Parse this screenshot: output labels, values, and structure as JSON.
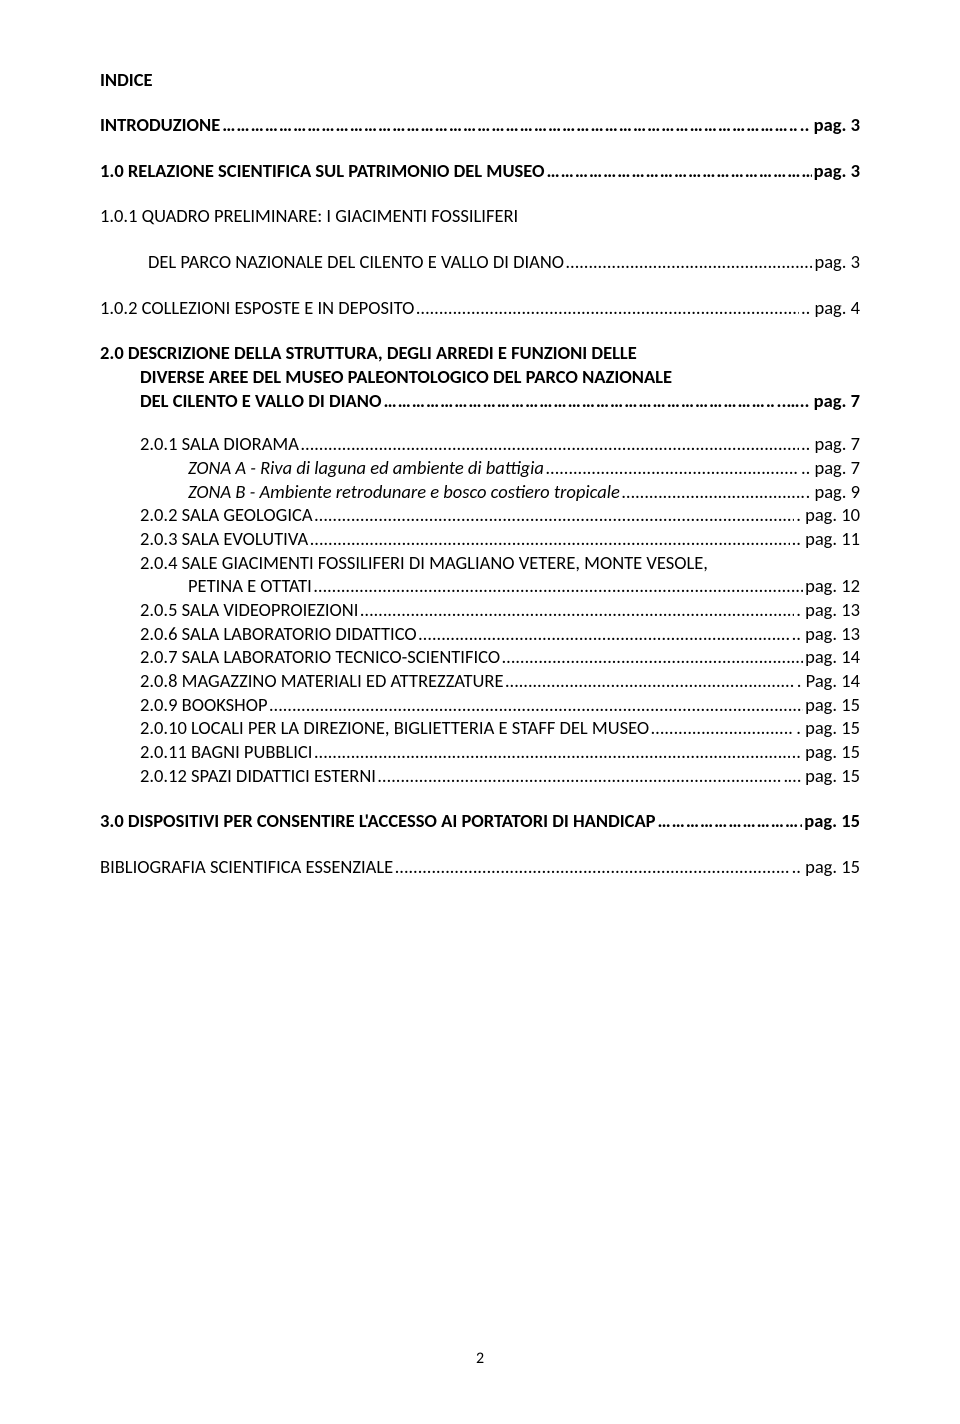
{
  "colors": {
    "text": "#000000",
    "background": "#ffffff"
  },
  "typography": {
    "body_fontsize_pt": 14,
    "line_height": 1.28,
    "font_family": "Calibri, Segoe UI, Arial, sans-serif",
    "bold_weight": 700
  },
  "title": "INDICE",
  "entries": [
    {
      "label": "INTRODUZIONE",
      "page": "pag. 3",
      "bold": true,
      "indent": 0,
      "dots": true,
      "dot_suffix": ".."
    },
    {
      "label": "1.0  RELAZIONE SCIENTIFICA SUL PATRIMONIO DEL MUSEO",
      "page": "pag. 3",
      "bold": true,
      "indent": 0,
      "dots": true,
      "dot_suffix": ""
    },
    {
      "label": "1.0.1 QUADRO PRELIMINARE: I GIACIMENTI FOSSILIFERI",
      "page": "",
      "bold": false,
      "indent": 0,
      "dots": false
    },
    {
      "label": "DEL PARCO NAZIONALE DEL CILENTO E VALLO DI DIANO",
      "page": "pag. 3",
      "bold": false,
      "indent": 1,
      "dots": true,
      "dot_suffix": ""
    },
    {
      "label": "1.0.2 COLLEZIONI ESPOSTE E IN DEPOSITO",
      "page": "pag. 4",
      "bold": false,
      "indent": 0,
      "dots": true,
      "dot_suffix": ".."
    },
    {
      "label": "2.0  DESCRIZIONE DELLA STRUTTURA, DEGLI ARREDI E FUNZIONI DELLE",
      "page": "",
      "bold": true,
      "indent": 0,
      "dots": false,
      "section2_line1": true
    },
    {
      "label": "DIVERSE AREE DEL MUSEO PALEONTOLOGICO DEL PARCO NAZIONALE",
      "page": "",
      "bold": true,
      "indent": 0,
      "dots": false,
      "list_indent": true
    },
    {
      "label": "DEL CILENTO E VALLO DI DIANO",
      "page": "pag. 7",
      "bold": true,
      "indent": 0,
      "dots": true,
      "dot_suffix": "..…..",
      "list_indent": true
    },
    {
      "label": "2.0.1  SALA DIORAMA",
      "page": "pag. 7",
      "bold": false,
      "indent": 0,
      "dots": true,
      "dot_suffix": "..",
      "list_indent": true
    },
    {
      "label": "ZONA A - Riva di laguna ed ambiente di battigia",
      "page": "pag. 7",
      "bold": false,
      "italic": true,
      "indent": 1,
      "dots": true,
      "dot_suffix": "..",
      "list_indent": true
    },
    {
      "label": "ZONA B - Ambiente retrodunare e bosco costiero tropicale",
      "page": "pag. 9",
      "bold": false,
      "italic": true,
      "indent": 1,
      "dots": true,
      "dot_suffix": ".",
      "list_indent": true
    },
    {
      "label": "2.0.2  SALA GEOLOGICA",
      "page": "pag. 10",
      "bold": false,
      "indent": 0,
      "dots": true,
      "dot_suffix": ".",
      "list_indent": true
    },
    {
      "label": "2.0.3  SALA EVOLUTIVA",
      "page": "pag. 11",
      "bold": false,
      "indent": 0,
      "dots": true,
      "dot_suffix": "..",
      "list_indent": true
    },
    {
      "label": "2.0.4  SALE GIACIMENTI FOSSILIFERI DI MAGLIANO VETERE, MONTE VESOLE,",
      "page": "",
      "bold": false,
      "indent": 0,
      "dots": false,
      "list_indent": true
    },
    {
      "label": "  PETINA E OTTATI",
      "page": "pag. 12",
      "bold": false,
      "indent": 1,
      "dots": true,
      "dot_suffix": "",
      "list_indent": true
    },
    {
      "label": "2.0.5  SALA VIDEOPROIEZIONI",
      "page": "pag. 13",
      "bold": false,
      "indent": 0,
      "dots": true,
      "dot_suffix": ".",
      "list_indent": true
    },
    {
      "label": "2.0.6  SALA LABORATORIO DIDATTICO",
      "page": "pag. 13",
      "bold": false,
      "indent": 0,
      "dots": true,
      "dot_suffix": "..",
      "list_indent": true
    },
    {
      "label": "2.0.7  SALA LABORATORIO TECNICO-SCIENTIFICO",
      "page": "pag. 14",
      "bold": false,
      "indent": 0,
      "dots": true,
      "dot_suffix": "",
      "list_indent": true
    },
    {
      "label": "2.0.8  MAGAZZINO MATERIALI ED ATTREZZATURE",
      "page": "Pag. 14",
      "bold": false,
      "indent": 0,
      "dots": true,
      "dot_suffix": ".",
      "list_indent": true
    },
    {
      "label": "2.0.9 BOOKSHOP",
      "page": "pag. 15",
      "bold": false,
      "indent": 0,
      "dots": true,
      "dot_suffix": "",
      "list_indent": true
    },
    {
      "label": "2.0.10 LOCALI PER LA DIREZIONE, BIGLIETTERIA E STAFF DEL MUSEO",
      "page": "pag. 15",
      "bold": false,
      "indent": 0,
      "dots": true,
      "dot_suffix": ".",
      "list_indent": true
    },
    {
      "label": "2.0.11 BAGNI PUBBLICI",
      "page": "pag. 15",
      "bold": false,
      "indent": 0,
      "dots": true,
      "dot_suffix": "..",
      "list_indent": true
    },
    {
      "label": "2.0.12 SPAZI DIDATTICI ESTERNI",
      "page": "pag. 15",
      "bold": false,
      "indent": 0,
      "dots": true,
      "dot_suffix": ".…",
      "list_indent": true
    },
    {
      "label": "3.0 DISPOSITIVI PER CONSENTIRE L'ACCESSO AI PORTATORI DI HANDICAP",
      "page": "pag. 15",
      "bold": true,
      "indent": 0,
      "dots": true,
      "dot_suffix": ""
    },
    {
      "label": "BIBLIOGRAFIA SCIENTIFICA ESSENZIALE",
      "page": "pag. 15",
      "bold": false,
      "indent": 0,
      "dots": true,
      "dot_suffix": ".."
    }
  ],
  "page_number": "2"
}
